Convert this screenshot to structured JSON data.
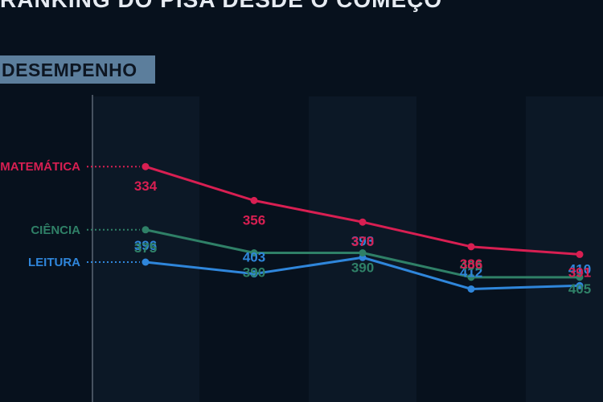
{
  "title": "RANKING DO PISA DESDE O COMEÇO",
  "section_label": "DESEMPENHO",
  "colors": {
    "background": "#07111d",
    "band": "#0c1826",
    "leitura": "#2f86db",
    "ciencia": "#2f8067",
    "matematica": "#d81f52"
  },
  "chart_data": {
    "type": "line",
    "x": [
      1,
      2,
      3,
      4,
      5
    ],
    "series": [
      {
        "name": "LEITURA",
        "color_key": "leitura",
        "values": [
          396,
          403,
          393,
          412,
          410
        ]
      },
      {
        "name": "CIÊNCIA",
        "color_key": "ciencia",
        "values": [
          375,
          390,
          390,
          405,
          405
        ]
      },
      {
        "name": "MATEMÁTICA",
        "color_key": "matematica",
        "values": [
          334,
          356,
          370,
          386,
          391
        ]
      }
    ],
    "title": "RANKING DO PISA DESDE O COMEÇO",
    "xlabel": "",
    "ylabel": "",
    "ylim": [
      320,
      420
    ],
    "grid": false,
    "legend": "left"
  }
}
